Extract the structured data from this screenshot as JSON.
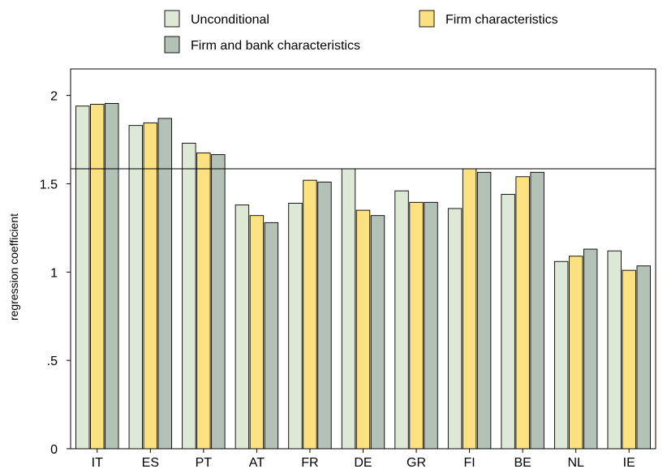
{
  "chart_data": {
    "type": "bar",
    "title": "",
    "xlabel": "",
    "ylabel": "regression coefficient",
    "ylim": [
      0,
      2.15
    ],
    "yticks": [
      0,
      0.5,
      1,
      1.5,
      2
    ],
    "ytick_labels": [
      "0",
      ".5",
      "1",
      "1.5",
      "2"
    ],
    "reference_line": 1.585,
    "grid": false,
    "legend_position": "top",
    "categories": [
      "IT",
      "ES",
      "PT",
      "AT",
      "FR",
      "DE",
      "GR",
      "FI",
      "BE",
      "NL",
      "IE"
    ],
    "series": [
      {
        "name": "Unconditional",
        "color": "#dde8d6",
        "values": [
          1.94,
          1.83,
          1.73,
          1.38,
          1.39,
          1.585,
          1.46,
          1.36,
          1.44,
          1.06,
          1.12
        ]
      },
      {
        "name": "Firm characteristics",
        "color": "#fbe180",
        "values": [
          1.95,
          1.845,
          1.675,
          1.32,
          1.52,
          1.35,
          1.395,
          1.585,
          1.54,
          1.09,
          1.01
        ]
      },
      {
        "name": "Firm and bank characteristics",
        "color": "#b3c1b6",
        "values": [
          1.955,
          1.87,
          1.665,
          1.28,
          1.51,
          1.32,
          1.395,
          1.565,
          1.565,
          1.13,
          1.035
        ]
      }
    ]
  }
}
